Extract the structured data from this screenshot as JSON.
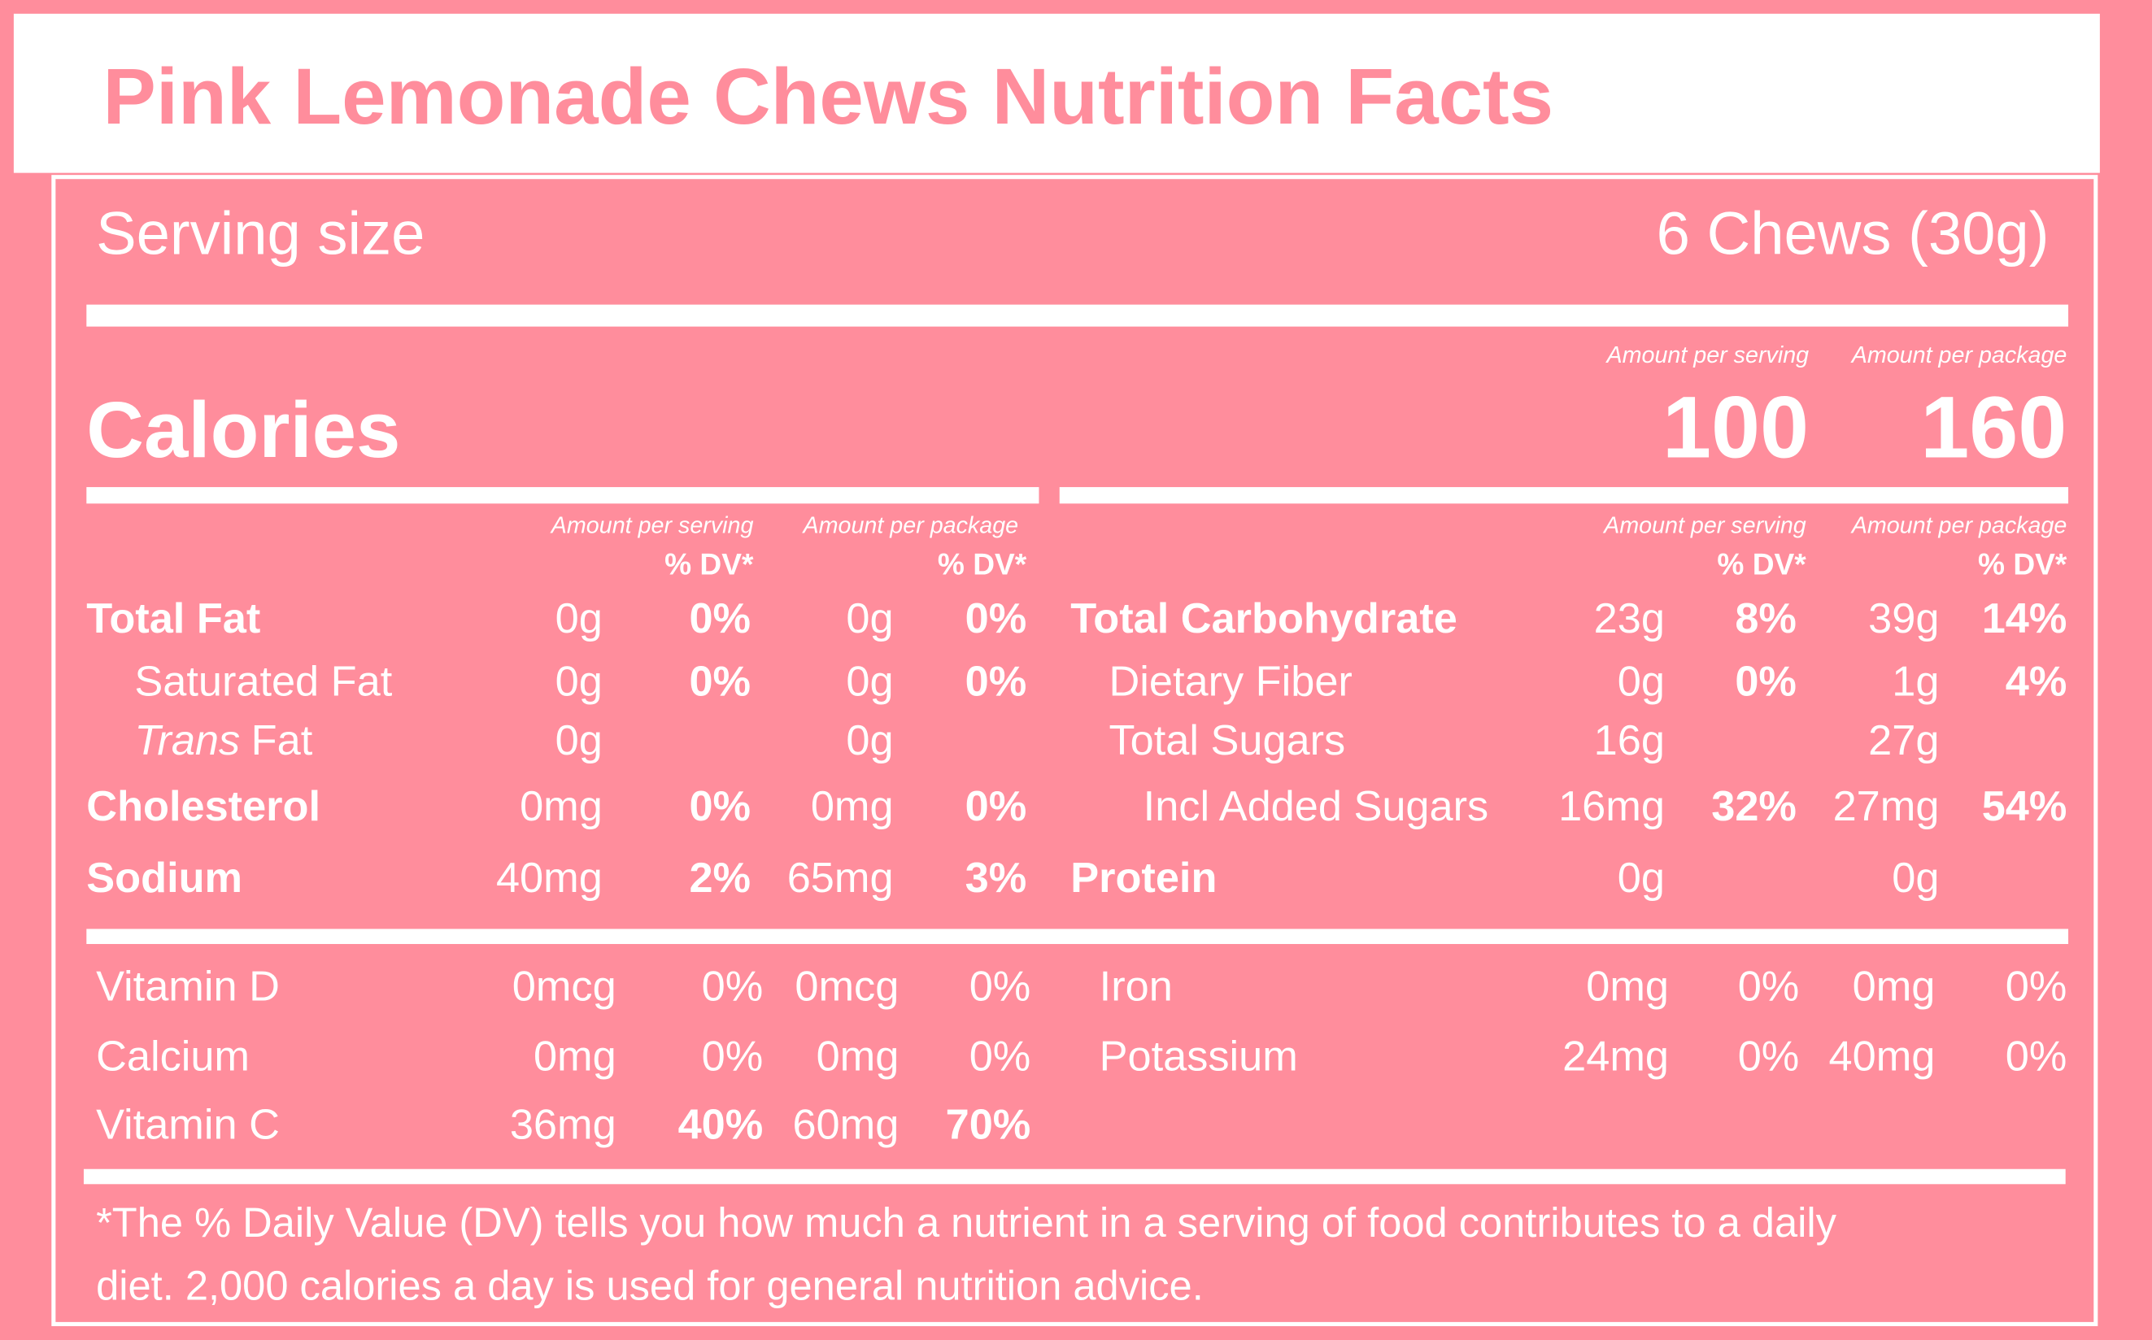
{
  "title": "Pink Lemonade Chews Nutrition Facts",
  "serving_size": {
    "label": "Serving size",
    "value": "6 Chews (30g)"
  },
  "calories": {
    "label": "Calories",
    "per_serving_header": "Amount per serving",
    "per_package_header": "Amount per package",
    "per_serving": "100",
    "per_package": "160"
  },
  "left_table": {
    "per_serving_header": "Amount per serving",
    "per_package_header": "Amount per package",
    "dv_header": "% DV*",
    "rows": [
      {
        "name": "Total Fat",
        "level": 0,
        "serving_amount": "0g",
        "serving_dv": "0%",
        "package_amount": "0g",
        "package_dv": "0%"
      },
      {
        "name": "Saturated Fat",
        "level": 1,
        "serving_amount": "0g",
        "serving_dv": "0%",
        "package_amount": "0g",
        "package_dv": "0%"
      },
      {
        "name_italic": "Trans",
        "name": "Fat",
        "level": 1,
        "serving_amount": "0g",
        "package_amount": "0g"
      },
      {
        "name": "Cholesterol",
        "level": 0,
        "serving_amount": "0mg",
        "serving_dv": "0%",
        "package_amount": "0mg",
        "package_dv": "0%"
      },
      {
        "name": "Sodium",
        "level": 0,
        "serving_amount": "40mg",
        "serving_dv": "2%",
        "package_amount": "65mg",
        "package_dv": "3%"
      }
    ]
  },
  "right_table": {
    "per_serving_header": "Amount per serving",
    "per_package_header": "Amount per package",
    "dv_header": "% DV*",
    "rows": [
      {
        "name": "Total Carbohydrate",
        "level": 0,
        "serving_amount": "23g",
        "serving_dv": "8%",
        "package_amount": "39g",
        "package_dv": "14%"
      },
      {
        "name": "Dietary Fiber",
        "level": 1,
        "serving_amount": "0g",
        "serving_dv": "0%",
        "package_amount": "1g",
        "package_dv": "4%"
      },
      {
        "name": "Total Sugars",
        "level": 1,
        "serving_amount": "16g",
        "package_amount": "27g"
      },
      {
        "name": "Incl Added Sugars",
        "level": 2,
        "serving_amount": "16mg",
        "serving_dv": "32%",
        "package_amount": "27mg",
        "package_dv": "54%"
      },
      {
        "name": "Protein",
        "level": 0,
        "serving_amount": "0g",
        "package_amount": "0g"
      }
    ]
  },
  "vitamins_left": [
    {
      "name": "Vitamin D",
      "serving_amount": "0mcg",
      "serving_dv": "0%",
      "package_amount": "0mcg",
      "package_dv": "0%"
    },
    {
      "name": "Calcium",
      "serving_amount": "0mg",
      "serving_dv": "0%",
      "package_amount": "0mg",
      "package_dv": "0%"
    },
    {
      "name": "Vitamin C",
      "serving_amount": "36mg",
      "serving_dv": "40%",
      "package_amount": "60mg",
      "package_dv": "70%",
      "highlight": true
    }
  ],
  "vitamins_right": [
    {
      "name": "Iron",
      "serving_amount": "0mg",
      "serving_dv": "0%",
      "package_amount": "0mg",
      "package_dv": "0%"
    },
    {
      "name": "Potassium",
      "serving_amount": "24mg",
      "serving_dv": "0%",
      "package_amount": "40mg",
      "package_dv": "0%"
    }
  ],
  "footnote": [
    "*The % Daily Value (DV) tells you how much a nutrient in a serving of food contributes to a daily",
    "diet. 2,000 calories a day is used for general nutrition advice."
  ]
}
